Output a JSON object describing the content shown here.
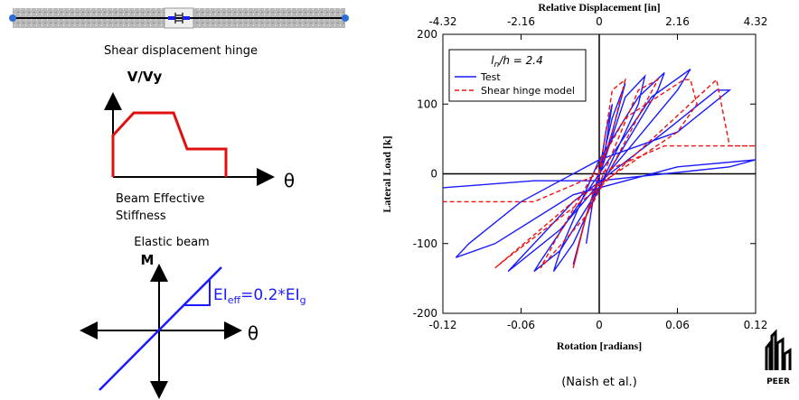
{
  "left_panel": {
    "hinge_caption": "Shear displacement hinge",
    "shear_axis_y": "V/Vy",
    "shear_axis_x": "θ",
    "stiffness_heading_1": "Beam Effective",
    "stiffness_heading_2": "Stiffness",
    "elastic_caption": "Elastic beam",
    "moment_axis_y": "M",
    "moment_axis_x": "θ",
    "stiffness_label": [
      "EI",
      "eff",
      "=0.2*EI",
      "g"
    ]
  },
  "chart_data": {
    "type": "line",
    "x_label": "Rotation [radians]",
    "y_label": "Lateral Load [k]",
    "x2_label": "Relative Displacement [in]",
    "xlim": [
      -0.12,
      0.12
    ],
    "xticks": [
      -0.12,
      -0.06,
      0,
      0.06,
      0.12
    ],
    "x2lim": [
      -4.32,
      4.32
    ],
    "x2ticks": [
      -4.32,
      -2.16,
      0,
      2.16,
      4.32
    ],
    "ylim": [
      -200,
      200
    ],
    "yticks": [
      -200,
      -100,
      0,
      100,
      200
    ],
    "legend_title": [
      "l",
      "n",
      "/h = 2.4"
    ],
    "legend": "upper left",
    "series": [
      {
        "name": "Test",
        "color": "#1a1aff",
        "line_style": "solid",
        "x": [
          0,
          0.005,
          0.01,
          0.005,
          -0.005,
          -0.01,
          -0.005,
          0.01,
          0.02,
          0.01,
          -0.01,
          -0.02,
          -0.01,
          0.02,
          0.035,
          0.03,
          0.0,
          -0.02,
          -0.035,
          -0.03,
          0,
          0.03,
          0.05,
          0.045,
          0.0,
          -0.03,
          -0.05,
          -0.045,
          0,
          0.04,
          0.07,
          0.06,
          0.02,
          -0.03,
          -0.07,
          -0.065,
          -0.02,
          0.05,
          0.09,
          0.1,
          0.06,
          0.0,
          -0.06,
          -0.1,
          -0.11,
          -0.08,
          -0.02,
          0.06,
          0.12,
          0.1,
          0.05,
          0,
          -0.05,
          -0.12
        ],
        "values": [
          0,
          60,
          100,
          40,
          -40,
          -100,
          -40,
          80,
          130,
          60,
          -60,
          -130,
          -60,
          110,
          140,
          100,
          -20,
          -100,
          -140,
          -110,
          20,
          110,
          145,
          120,
          -20,
          -110,
          -140,
          -125,
          0,
          110,
          150,
          120,
          30,
          -80,
          -140,
          -130,
          -40,
          60,
          120,
          120,
          60,
          20,
          -40,
          -100,
          -120,
          -100,
          -30,
          10,
          20,
          10,
          0,
          -10,
          -10,
          -20
        ]
      },
      {
        "name": "Shear hinge model",
        "color": "#ee1111",
        "line_style": "dashed",
        "x": [
          0,
          0.01,
          0.02,
          0.01,
          -0.01,
          -0.02,
          -0.01,
          0.03,
          0.045,
          0.035,
          -0.01,
          -0.045,
          -0.035,
          0.02,
          0.065,
          0.07,
          0.075,
          0.06,
          -0.02,
          -0.08,
          -0.07,
          0.0,
          0.09,
          0.1,
          0.12,
          0.05,
          -0.05,
          -0.1,
          -0.12
        ],
        "values": [
          0,
          120,
          135,
          60,
          -60,
          -135,
          -60,
          120,
          135,
          100,
          -60,
          -135,
          -100,
          80,
          135,
          135,
          100,
          60,
          -40,
          -135,
          -120,
          -20,
          135,
          40,
          40,
          40,
          -40,
          -40,
          -40
        ]
      }
    ]
  },
  "citation": "(Naish et al.)",
  "logo": "PEER"
}
